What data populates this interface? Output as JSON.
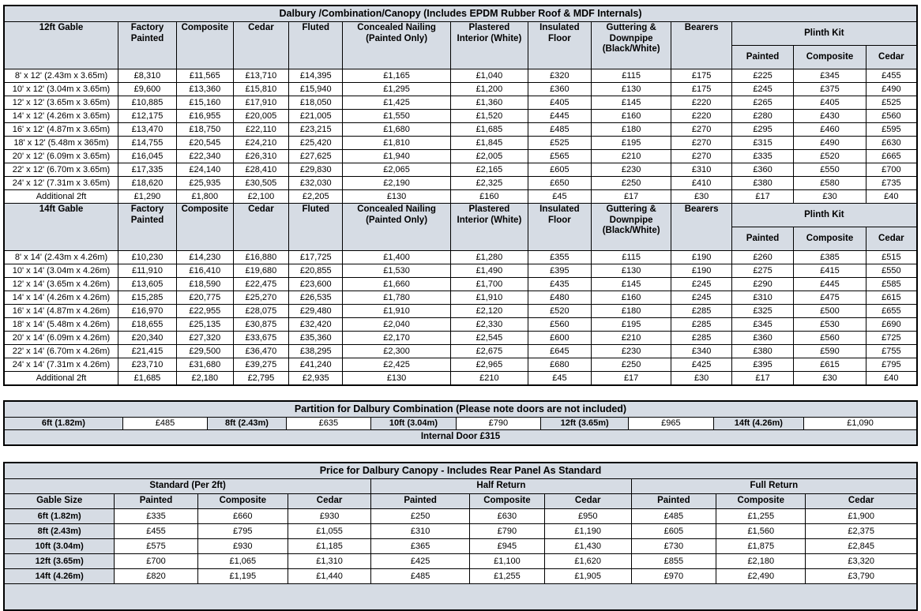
{
  "colors": {
    "header_fill": "#d6dce4",
    "border": "#000000",
    "background": "#ffffff"
  },
  "main_table": {
    "title": "Dalbury /Combination/Canopy (Includes EPDM Rubber Roof & MDF Internals)",
    "sections": [
      {
        "size_header": "12ft Gable",
        "columns": [
          "Factory Painted",
          "Composite",
          "Cedar",
          "Fluted",
          "Concealed Nailing (Painted Only)",
          "Plastered Interior (White)",
          "Insulated Floor",
          "Guttering & Downpipe (Black/White)",
          "Bearers"
        ],
        "plinth_kit": {
          "label": "Plinth Kit",
          "sub": [
            "Painted",
            "Composite",
            "Cedar"
          ]
        },
        "rows": [
          [
            "8' x 12' (2.43m x 3.65m)",
            "£8,310",
            "£11,565",
            "£13,710",
            "£14,395",
            "£1,165",
            "£1,040",
            "£320",
            "£115",
            "£175",
            "£225",
            "£345",
            "£455"
          ],
          [
            "10' x 12' (3.04m x 3.65m)",
            "£9,600",
            "£13,360",
            "£15,810",
            "£15,940",
            "£1,295",
            "£1,200",
            "£360",
            "£130",
            "£175",
            "£245",
            "£375",
            "£490"
          ],
          [
            "12' x 12' (3.65m x 3.65m)",
            "£10,885",
            "£15,160",
            "£17,910",
            "£18,050",
            "£1,425",
            "£1,360",
            "£405",
            "£145",
            "£220",
            "£265",
            "£405",
            "£525"
          ],
          [
            "14' x 12' (4.26m x 3.65m)",
            "£12,175",
            "£16,955",
            "£20,005",
            "£21,005",
            "£1,550",
            "£1,520",
            "£445",
            "£160",
            "£220",
            "£280",
            "£430",
            "£560"
          ],
          [
            "16' x 12' (4.87m x 3.65m)",
            "£13,470",
            "£18,750",
            "£22,110",
            "£23,215",
            "£1,680",
            "£1,685",
            "£485",
            "£180",
            "£270",
            "£295",
            "£460",
            "£595"
          ],
          [
            "18' x 12' (5.48m x 365m)",
            "£14,755",
            "£20,545",
            "£24,210",
            "£25,420",
            "£1,810",
            "£1,845",
            "£525",
            "£195",
            "£270",
            "£315",
            "£490",
            "£630"
          ],
          [
            "20' x 12' (6.09m x 3.65m)",
            "£16,045",
            "£22,340",
            "£26,310",
            "£27,625",
            "£1,940",
            "£2,005",
            "£565",
            "£210",
            "£270",
            "£335",
            "£520",
            "£665"
          ],
          [
            "22' x 12' (6.70m x 3.65m)",
            "£17,335",
            "£24,140",
            "£28,410",
            "£29,830",
            "£2,065",
            "£2,165",
            "£605",
            "£230",
            "£310",
            "£360",
            "£550",
            "£700"
          ],
          [
            "24' x 12' (7.31m x 3.65m)",
            "£18,620",
            "£25,935",
            "£30,505",
            "£32,030",
            "£2,190",
            "£2,325",
            "£650",
            "£250",
            "£410",
            "£380",
            "£580",
            "£735"
          ],
          [
            "Additional 2ft",
            "£1,290",
            "£1,800",
            "£2,100",
            "£2,205",
            "£130",
            "£160",
            "£45",
            "£17",
            "£30",
            "£17",
            "£30",
            "£40"
          ]
        ]
      },
      {
        "size_header": "14ft Gable",
        "columns": [
          "Factory Painted",
          "Composite",
          "Cedar",
          "Fluted",
          "Concealed Nailing (Painted Only)",
          "Plastered Interior (White)",
          "Insulated Floor",
          "Guttering & Downpipe (Black/White)",
          "Bearers"
        ],
        "plinth_kit": {
          "label": "Plinth Kit",
          "sub": [
            "Painted",
            "Composite",
            "Cedar"
          ]
        },
        "rows": [
          [
            "8' x 14' (2.43m x 4.26m)",
            "£10,230",
            "£14,230",
            "£16,880",
            "£17,725",
            "£1,400",
            "£1,280",
            "£355",
            "£115",
            "£190",
            "£260",
            "£385",
            "£515"
          ],
          [
            "10' x 14' (3.04m x 4.26m)",
            "£11,910",
            "£16,410",
            "£19,680",
            "£20,855",
            "£1,530",
            "£1,490",
            "£395",
            "£130",
            "£190",
            "£275",
            "£415",
            "£550"
          ],
          [
            "12' x 14' (3.65m x 4.26m)",
            "£13,605",
            "£18,590",
            "£22,475",
            "£23,600",
            "£1,660",
            "£1,700",
            "£435",
            "£145",
            "£245",
            "£290",
            "£445",
            "£585"
          ],
          [
            "14' x 14' (4.26m x 4.26m)",
            "£15,285",
            "£20,775",
            "£25,270",
            "£26,535",
            "£1,780",
            "£1,910",
            "£480",
            "£160",
            "£245",
            "£310",
            "£475",
            "£615"
          ],
          [
            "16' x 14' (4.87m x 4.26m)",
            "£16,970",
            "£22,955",
            "£28,075",
            "£29,480",
            "£1,910",
            "£2,120",
            "£520",
            "£180",
            "£285",
            "£325",
            "£500",
            "£655"
          ],
          [
            "18' x 14' (5.48m x 4.26m)",
            "£18,655",
            "£25,135",
            "£30,875",
            "£32,420",
            "£2,040",
            "£2,330",
            "£560",
            "£195",
            "£285",
            "£345",
            "£530",
            "£690"
          ],
          [
            "20' x 14' (6.09m x 4.26m)",
            "£20,340",
            "£27,320",
            "£33,675",
            "£35,360",
            "£2,170",
            "£2,545",
            "£600",
            "£210",
            "£285",
            "£360",
            "£560",
            "£725"
          ],
          [
            "22' x 14' (6.70m x 4.26m)",
            "£21,415",
            "£29,500",
            "£36,470",
            "£38,295",
            "£2,300",
            "£2,675",
            "£645",
            "£230",
            "£340",
            "£380",
            "£590",
            "£755"
          ],
          [
            "24' x 14' (7.31m x 4.26m)",
            "£23,710",
            "£31,680",
            "£39,275",
            "£41,240",
            "£2,425",
            "£2,965",
            "£680",
            "£250",
            "£425",
            "£395",
            "£615",
            "£795"
          ],
          [
            "Additional 2ft",
            "£1,685",
            "£2,180",
            "£2,795",
            "£2,935",
            "£130",
            "£210",
            "£45",
            "£17",
            "£30",
            "£17",
            "£30",
            "£40"
          ]
        ]
      }
    ]
  },
  "partition_table": {
    "title": "Partition for Dalbury Combination (Please note doors are not included)",
    "pairs": [
      {
        "label": "6ft (1.82m)",
        "price": "£485"
      },
      {
        "label": "8ft (2.43m)",
        "price": "£635"
      },
      {
        "label": "10ft (3.04m)",
        "price": "£790"
      },
      {
        "label": "12ft (3.65m)",
        "price": "£965"
      },
      {
        "label": "14ft (4.26m)",
        "price": "£1,090"
      }
    ],
    "footer": "Internal Door £315"
  },
  "canopy_table": {
    "title": "Price for Dalbury Canopy - Includes Rear Panel As Standard",
    "groups": [
      "Standard (Per 2ft)",
      "Half Return",
      "Full Return"
    ],
    "gable_header": "Gable Size",
    "sub_columns": [
      "Painted",
      "Composite",
      "Cedar"
    ],
    "rows": [
      [
        "6ft (1.82m)",
        "£335",
        "£660",
        "£930",
        "£250",
        "£630",
        "£950",
        "£485",
        "£1,255",
        "£1,900"
      ],
      [
        "8ft (2.43m)",
        "£455",
        "£795",
        "£1,055",
        "£310",
        "£790",
        "£1,190",
        "£605",
        "£1,560",
        "£2,375"
      ],
      [
        "10ft (3.04m)",
        "£575",
        "£930",
        "£1,185",
        "£365",
        "£945",
        "£1,430",
        "£730",
        "£1,875",
        "£2,845"
      ],
      [
        "12ft (3.65m)",
        "£700",
        "£1,065",
        "£1,310",
        "£425",
        "£1,100",
        "£1,620",
        "£855",
        "£2,180",
        "£3,320"
      ],
      [
        "14ft (4.26m)",
        "£820",
        "£1,195",
        "£1,440",
        "£485",
        "£1,255",
        "£1,905",
        "£970",
        "£2,490",
        "£3,790"
      ]
    ]
  }
}
